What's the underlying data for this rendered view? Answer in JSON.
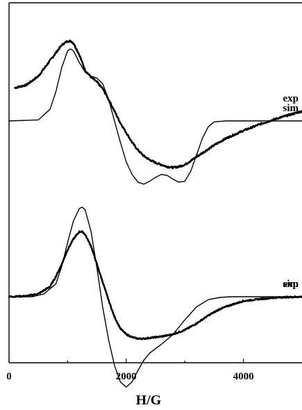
{
  "chart_data": {
    "type": "line",
    "xlabel": "H/G",
    "ylabel": "",
    "xlim": [
      0,
      5000
    ],
    "xticks": [
      0,
      2000,
      4000
    ],
    "xtick_labels": [
      "0",
      "2000",
      "4000"
    ],
    "y_ticks_labeled": false,
    "grid": false,
    "legend": "none",
    "series": [
      {
        "name": "exp",
        "panel": "upper",
        "style": "noisy-thick",
        "x": [
          100,
          300,
          500,
          700,
          900,
          1000,
          1050,
          1100,
          1200,
          1300,
          1400,
          1500,
          1600,
          1700,
          1800,
          1900,
          2000,
          2100,
          2200,
          2300,
          2400,
          2500,
          2600,
          2700,
          2800,
          2900,
          3000,
          3100,
          3200,
          3300,
          3500,
          3700,
          4000,
          4300,
          4600,
          5000
        ],
        "y": [
          0.34,
          0.37,
          0.46,
          0.62,
          0.78,
          0.82,
          0.82,
          0.8,
          0.68,
          0.52,
          0.45,
          0.4,
          0.33,
          0.22,
          0.1,
          -0.02,
          -0.12,
          -0.22,
          -0.3,
          -0.36,
          -0.4,
          -0.43,
          -0.45,
          -0.47,
          -0.48,
          -0.47,
          -0.45,
          -0.41,
          -0.37,
          -0.33,
          -0.25,
          -0.18,
          -0.1,
          -0.03,
          0.03,
          0.1
        ]
      },
      {
        "name": "sim",
        "panel": "upper",
        "style": "thin",
        "x": [
          0,
          500,
          700,
          800,
          900,
          1000,
          1050,
          1100,
          1200,
          1300,
          1400,
          1500,
          1600,
          1700,
          1800,
          1900,
          2000,
          2100,
          2200,
          2300,
          2400,
          2500,
          2600,
          2700,
          2800,
          2900,
          3000,
          3100,
          3200,
          3300,
          3400,
          3500,
          3700,
          4000,
          4500,
          5000
        ],
        "y": [
          0.0,
          0.01,
          0.12,
          0.3,
          0.55,
          0.72,
          0.74,
          0.72,
          0.6,
          0.5,
          0.46,
          0.44,
          0.38,
          0.22,
          0.0,
          -0.22,
          -0.42,
          -0.55,
          -0.63,
          -0.65,
          -0.62,
          -0.58,
          -0.55,
          -0.56,
          -0.6,
          -0.63,
          -0.62,
          -0.52,
          -0.35,
          -0.18,
          -0.06,
          -0.01,
          0.0,
          0.0,
          0.0,
          0.0
        ]
      },
      {
        "name": "exp",
        "panel": "lower",
        "style": "noisy-thick",
        "x": [
          0,
          300,
          500,
          700,
          800,
          900,
          1000,
          1100,
          1200,
          1250,
          1300,
          1400,
          1500,
          1600,
          1700,
          1800,
          1900,
          2000,
          2100,
          2200,
          2300,
          2400,
          2600,
          2800,
          3000,
          3200,
          3400,
          3600,
          3800,
          4000,
          4300,
          4600,
          5000
        ],
        "y": [
          0.0,
          0.01,
          0.04,
          0.14,
          0.28,
          0.45,
          0.65,
          0.8,
          0.9,
          0.9,
          0.86,
          0.7,
          0.45,
          0.2,
          -0.05,
          -0.28,
          -0.44,
          -0.52,
          -0.56,
          -0.58,
          -0.58,
          -0.57,
          -0.55,
          -0.52,
          -0.46,
          -0.37,
          -0.26,
          -0.17,
          -0.11,
          -0.06,
          -0.03,
          -0.01,
          0.0
        ]
      },
      {
        "name": "sim",
        "panel": "lower",
        "style": "thin",
        "x": [
          0,
          400,
          600,
          800,
          900,
          1000,
          1100,
          1200,
          1250,
          1300,
          1400,
          1500,
          1600,
          1700,
          1800,
          1900,
          2000,
          2100,
          2200,
          2300,
          2400,
          2600,
          2800,
          3000,
          3200,
          3400,
          3600,
          3800,
          4000,
          4500,
          5000
        ],
        "y": [
          0.0,
          0.0,
          0.04,
          0.18,
          0.42,
          0.75,
          1.05,
          1.22,
          1.24,
          1.2,
          0.9,
          0.4,
          -0.15,
          -0.6,
          -0.95,
          -1.18,
          -1.25,
          -1.18,
          -1.02,
          -0.88,
          -0.78,
          -0.66,
          -0.52,
          -0.32,
          -0.14,
          -0.04,
          -0.01,
          0.0,
          0.0,
          0.0,
          0.0
        ]
      }
    ],
    "curve_labels": [
      {
        "text": "exp",
        "series": 0
      },
      {
        "text": "sim",
        "series": 1
      },
      {
        "text": "exp",
        "series": 2
      },
      {
        "text": "sim",
        "series": 3
      }
    ]
  }
}
